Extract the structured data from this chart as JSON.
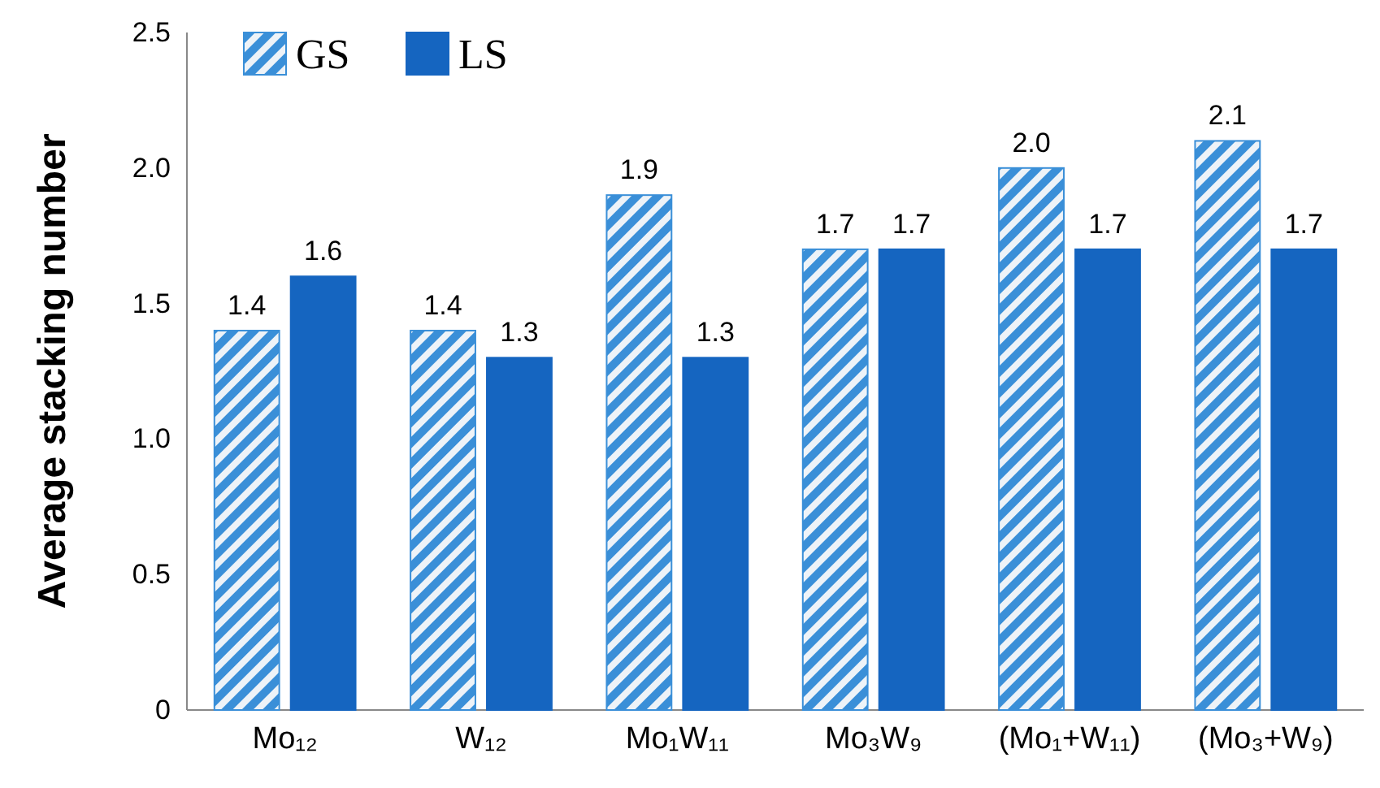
{
  "chart_data": {
    "type": "bar",
    "ylabel": "Average stacking number",
    "categories": [
      "Mo₁₂",
      "W₁₂",
      "Mo₁W₁₁",
      "Mo₃W₉",
      "(Mo₁+W₁₁)",
      "(Mo₃+W₉)"
    ],
    "series": [
      {
        "name": "GS",
        "color": "#3a8fd8",
        "values": [
          1.4,
          1.4,
          1.9,
          1.7,
          2.0,
          2.1
        ],
        "value_labels": [
          "1.4",
          "1.4",
          "1.9",
          "1.7",
          "2.0",
          "2.1"
        ]
      },
      {
        "name": "LS",
        "color": "#1565c0",
        "values": [
          1.6,
          1.3,
          1.3,
          1.7,
          1.7,
          1.7
        ],
        "value_labels": [
          "1.6",
          "1.3",
          "1.3",
          "1.7",
          "1.7",
          "1.7"
        ]
      }
    ],
    "ylim": [
      0,
      2.5
    ],
    "yticks": [
      0,
      0.5,
      {
        "value": 1,
        "label": "1.0"
      },
      1.5,
      {
        "value": 2,
        "label": "2.0"
      },
      2.5
    ],
    "legend": "top left",
    "grid": false
  }
}
